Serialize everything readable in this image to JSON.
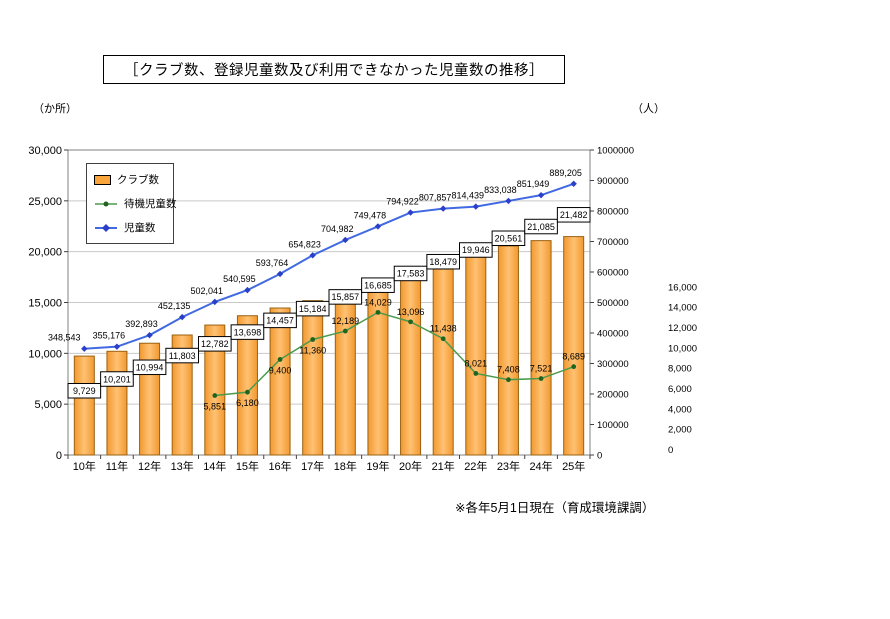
{
  "title": "［クラブ数、登録児童数及び利用できなかった児童数の推移］",
  "axis_units": {
    "left": "（か所）",
    "right": "（人）"
  },
  "footnote": "※各年5月1日現在（育成環境課調）",
  "chart_data": {
    "type": "bar+line combo",
    "title": "クラブ数、登録児童数及び利用できなかった児童数の推移",
    "grid": true,
    "legend_position": "top-left",
    "categories": [
      "10年",
      "11年",
      "12年",
      "13年",
      "14年",
      "15年",
      "16年",
      "17年",
      "18年",
      "19年",
      "20年",
      "21年",
      "22年",
      "23年",
      "24年",
      "25年"
    ],
    "series": [
      {
        "name": "クラブ数",
        "type": "bar",
        "axis": "left",
        "color": "#FAA43C",
        "values": [
          9729,
          10201,
          10994,
          11803,
          12782,
          13698,
          14457,
          15184,
          15857,
          16685,
          17583,
          18479,
          19946,
          20561,
          21085,
          21482
        ]
      },
      {
        "name": "待機児童数",
        "type": "line",
        "axis": "green-right",
        "color": "#4C9A4C",
        "marker_color": "#1F641F",
        "values": [
          null,
          null,
          null,
          null,
          5851,
          6180,
          9400,
          11360,
          12189,
          14029,
          13096,
          11438,
          8021,
          7408,
          7521,
          8689
        ]
      },
      {
        "name": "児童数",
        "type": "line",
        "axis": "blue-right",
        "color": "#4169E1",
        "marker_color": "#2B3FC8",
        "values": [
          348543,
          355176,
          392893,
          452135,
          502041,
          540595,
          593764,
          654823,
          704982,
          749478,
          794922,
          807857,
          814439,
          833038,
          851949,
          889205
        ]
      }
    ],
    "left_axis": {
      "min": 0,
      "max": 30000,
      "step": 5000,
      "label_color": "#000000"
    },
    "blue_axis": {
      "min": 0,
      "max": 1000000,
      "step": 100000,
      "color": "#2424D8"
    },
    "green_axis": {
      "min": 0,
      "max": 16000,
      "step": 2000,
      "color": "#3C9A3C"
    }
  }
}
